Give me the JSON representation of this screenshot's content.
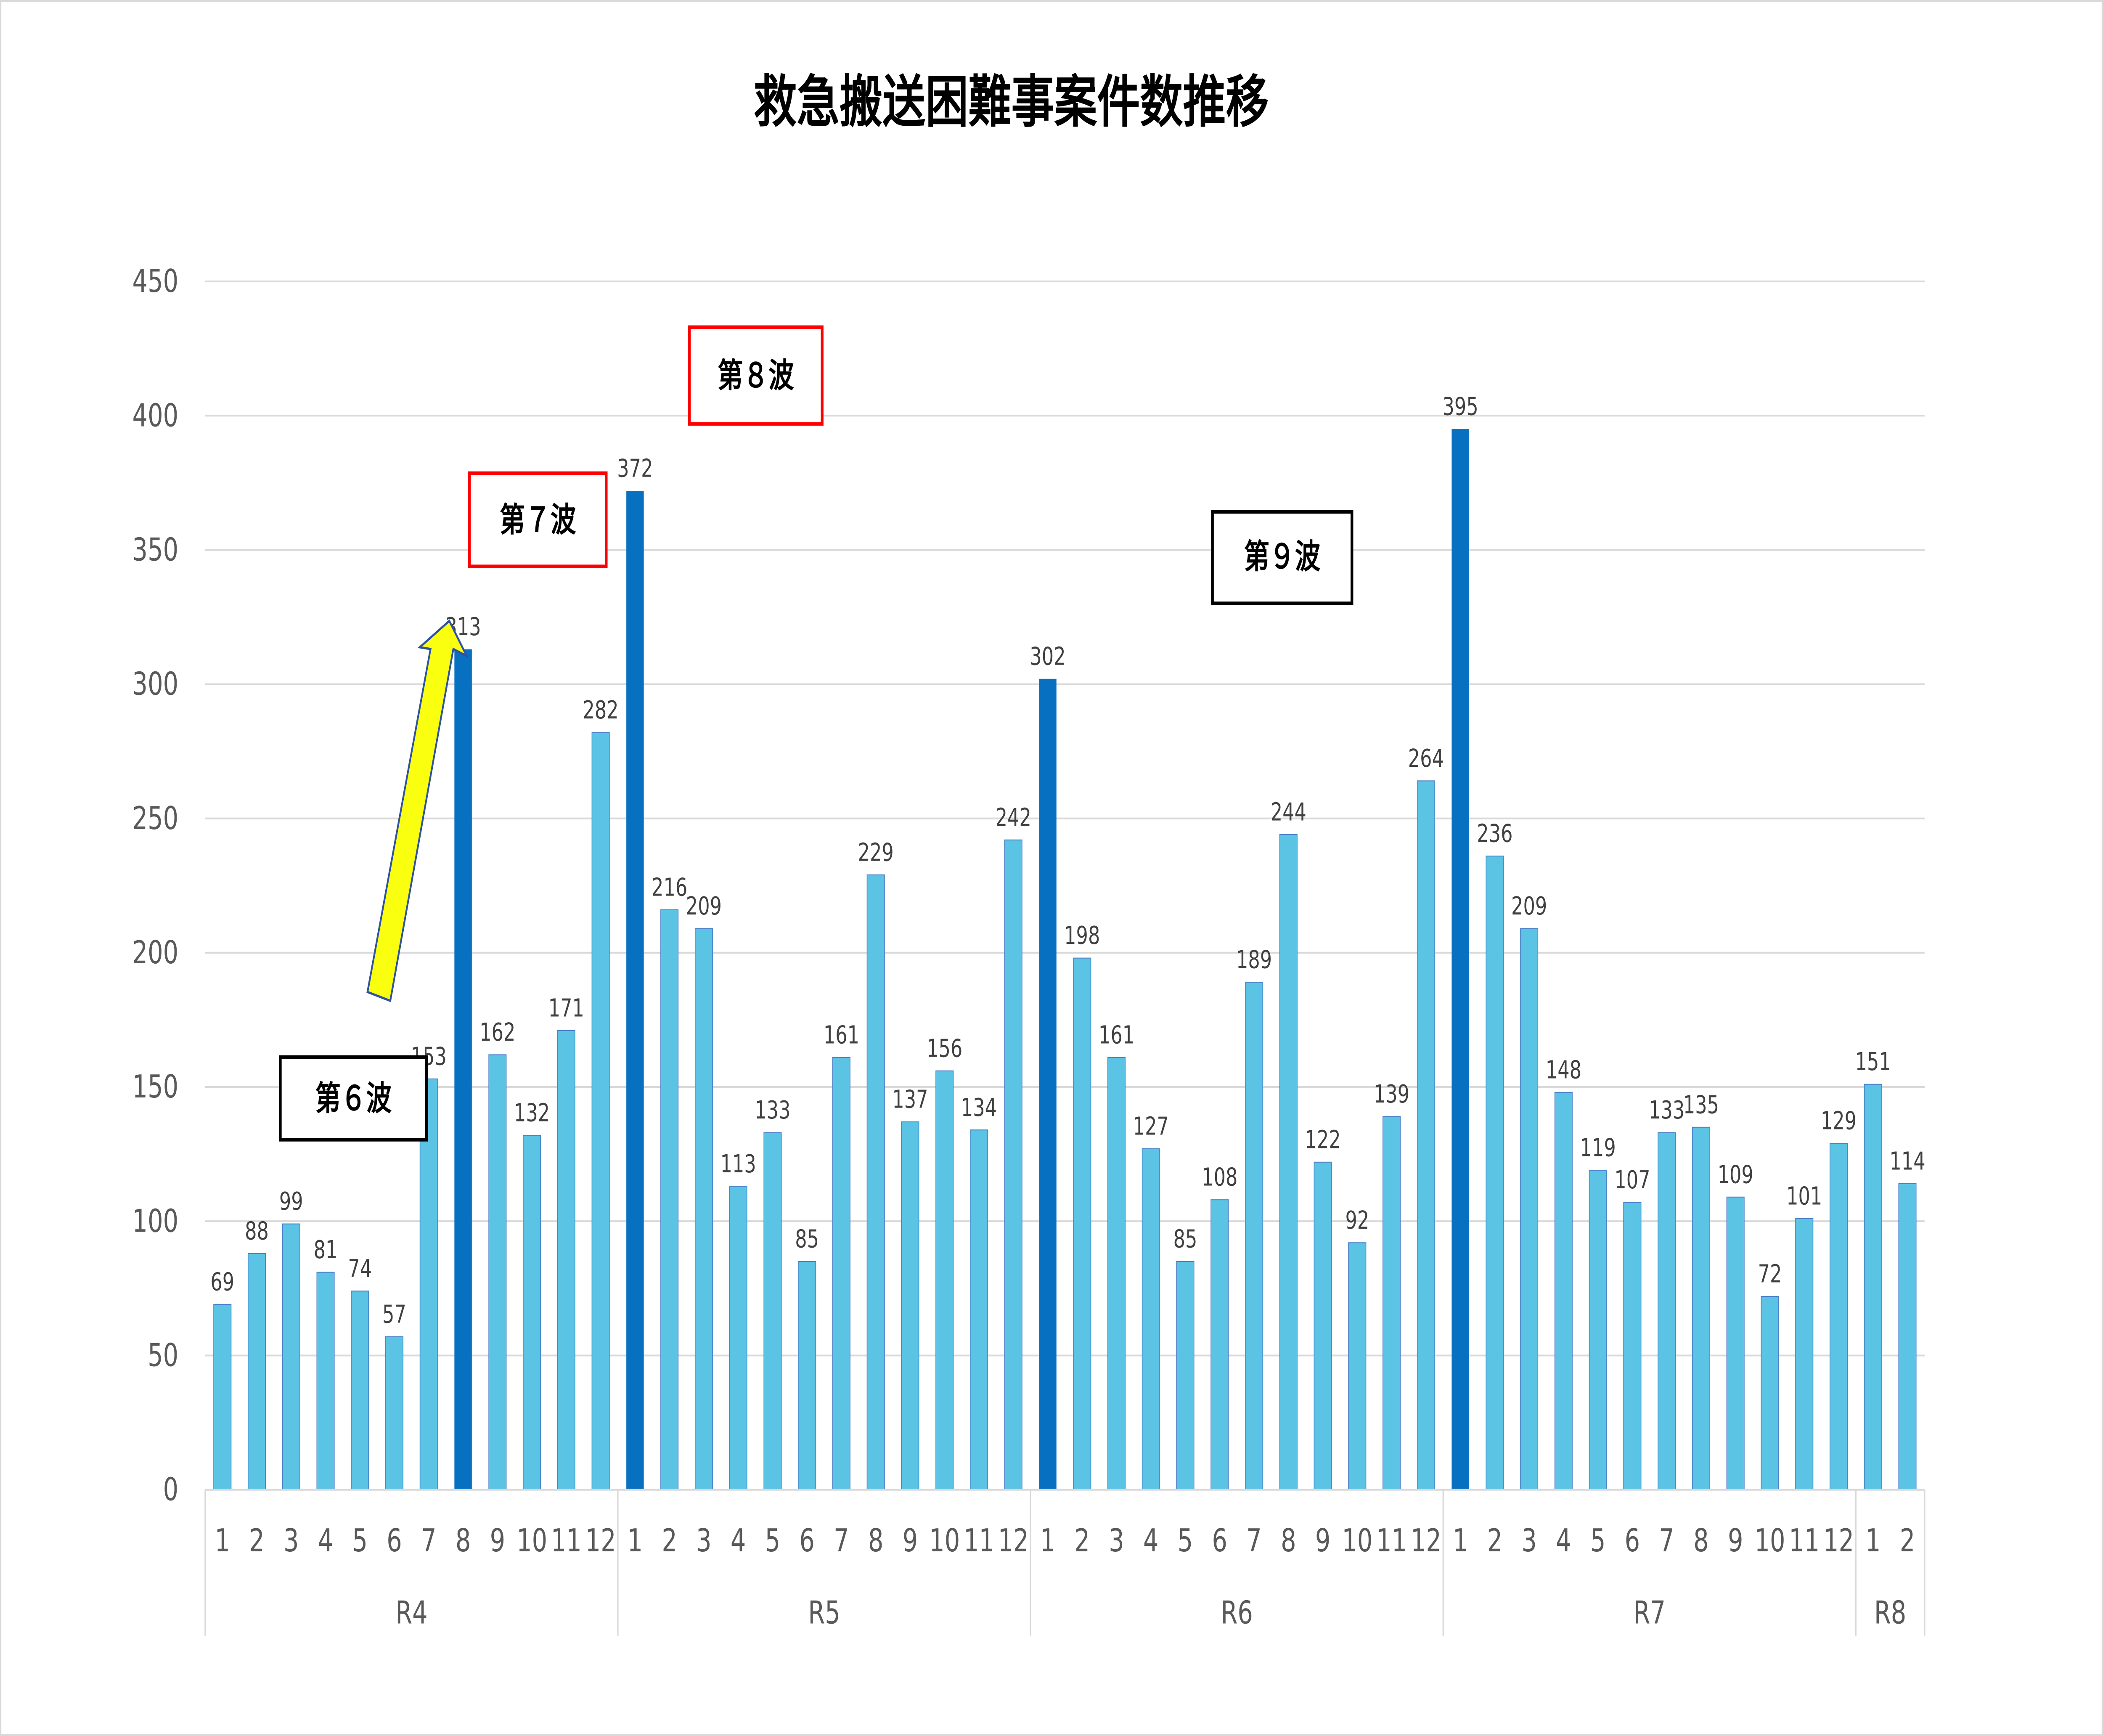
{
  "chart_data": {
    "type": "bar",
    "title": "救急搬送困難事案件数推移",
    "xlabel": "",
    "ylabel": "",
    "ylim": [
      0,
      450
    ],
    "yticks": [
      0,
      50,
      100,
      150,
      200,
      250,
      300,
      350,
      400,
      450
    ],
    "grid": true,
    "legend": "none",
    "groups": [
      {
        "label": "R4",
        "months": [
          "1",
          "2",
          "3",
          "4",
          "5",
          "6",
          "7",
          "8",
          "9",
          "10",
          "11",
          "12"
        ],
        "values": [
          69,
          88,
          99,
          81,
          74,
          57,
          153,
          313,
          162,
          132,
          171,
          282
        ]
      },
      {
        "label": "R5",
        "months": [
          "1",
          "2",
          "3",
          "4",
          "5",
          "6",
          "7",
          "8",
          "9",
          "10",
          "11",
          "12"
        ],
        "values": [
          372,
          216,
          209,
          113,
          133,
          85,
          161,
          229,
          137,
          156,
          134,
          242
        ]
      },
      {
        "label": "R6",
        "months": [
          "1",
          "2",
          "3",
          "4",
          "5",
          "6",
          "7",
          "8",
          "9",
          "10",
          "11",
          "12"
        ],
        "values": [
          302,
          198,
          161,
          127,
          85,
          108,
          189,
          244,
          122,
          92,
          139,
          264
        ]
      },
      {
        "label": "R7",
        "months": [
          "1",
          "2",
          "3",
          "4",
          "5",
          "6",
          "7",
          "8",
          "9",
          "10",
          "11",
          "12"
        ],
        "values": [
          395,
          236,
          209,
          148,
          119,
          107,
          133,
          135,
          109,
          72,
          101,
          129
        ]
      },
      {
        "label": "R8",
        "months": [
          "1",
          "2"
        ],
        "values": [
          151,
          114
        ]
      }
    ],
    "highlighted_bars": [
      "R4-8",
      "R5-1",
      "R6-1",
      "R7-1"
    ],
    "colors": {
      "bar": "#5bc4e4",
      "highlight": "#0870c0",
      "grid": "#d9d9d9",
      "arrow": "#faff0f",
      "red_box": "#ff0000",
      "black_box": "#000000"
    },
    "annotations": [
      {
        "text": "第６波",
        "border": "black"
      },
      {
        "text": "第７波",
        "border": "red"
      },
      {
        "text": "第８波",
        "border": "red"
      },
      {
        "text": "第９波",
        "border": "black"
      }
    ],
    "arrow": {
      "color": "yellow",
      "points_to": "R4-8"
    }
  }
}
